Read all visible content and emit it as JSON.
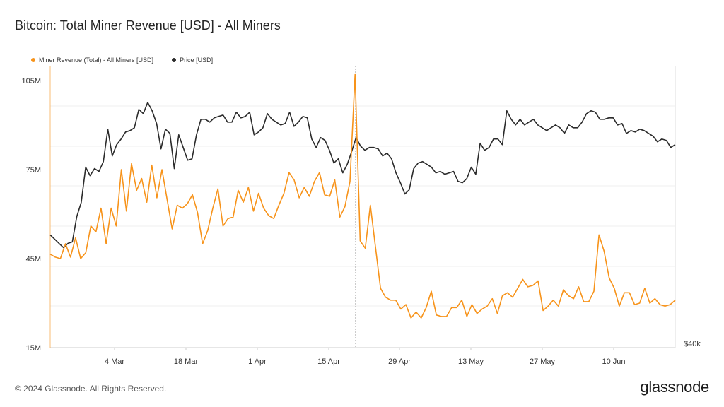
{
  "header": {
    "title": "Bitcoin: Total Miner Revenue [USD] - All Miners"
  },
  "footer": {
    "copyright": "© 2024 Glassnode. All Rights Reserved.",
    "logo": "glassnode"
  },
  "colors": {
    "revenue": "#f7931a",
    "price": "#2b2b2b",
    "grid": "#efefef",
    "axis": "#cccccc"
  },
  "chart_data": {
    "type": "line",
    "legend_position": "top-left",
    "grid": true,
    "x_ticks": [
      "4 Mar",
      "18 Mar",
      "1 Apr",
      "15 Apr",
      "29 Apr",
      "13 May",
      "27 May",
      "10 Jun"
    ],
    "y_left": {
      "ticks": [
        "15M",
        "45M",
        "75M",
        "105M"
      ],
      "tick_values": [
        15,
        45,
        75,
        105
      ],
      "range": [
        15,
        110
      ]
    },
    "y_right": {
      "ticks": [
        "$40k"
      ]
    },
    "marker_line_day": 49,
    "series": [
      {
        "name": "Miner Revenue (Total) - All Miners [USD]",
        "axis": "left",
        "unit": "M USD",
        "values": [
          46.5,
          45.5,
          45,
          50,
          45.5,
          52,
          45,
          47,
          56,
          54,
          62,
          50,
          62,
          56,
          75,
          61,
          77,
          68,
          72,
          64,
          76.5,
          65.5,
          75,
          65,
          55,
          63,
          62,
          63.5,
          66.5,
          60.5,
          50,
          54.5,
          62,
          68.5,
          56,
          58.5,
          59,
          68,
          64,
          69,
          61,
          67,
          62,
          59.5,
          58.5,
          63,
          67,
          74,
          71.5,
          65.5,
          69,
          66,
          71,
          74,
          66.5,
          66,
          71.5,
          59,
          62.5,
          71,
          107,
          51,
          48.5,
          63,
          49,
          35,
          32,
          31,
          31,
          28,
          29.5,
          25,
          27,
          25,
          28.5,
          34,
          26,
          25.5,
          25.5,
          28.5,
          28.5,
          31,
          25.5,
          29.5,
          26.5,
          28,
          29,
          31.5,
          26.5,
          32.5,
          33.5,
          32,
          35,
          38,
          35.5,
          36,
          37.5,
          27.5,
          29,
          31,
          29,
          34.5,
          32.5,
          31.5,
          35.5,
          30.5,
          30.5,
          34,
          53,
          47.5,
          38.5,
          35,
          29,
          33.5,
          33.5,
          29.5,
          30,
          35,
          30,
          31.5,
          29.5,
          29,
          29.5,
          31
        ]
      },
      {
        "name": "Price [USD]",
        "axis": "right",
        "unit": "relative level (0 = axis floor, 1 = chart top)",
        "values": [
          0.4,
          0.385,
          0.37,
          0.355,
          0.37,
          0.375,
          0.465,
          0.515,
          0.64,
          0.61,
          0.635,
          0.625,
          0.66,
          0.775,
          0.68,
          0.72,
          0.74,
          0.765,
          0.77,
          0.78,
          0.845,
          0.83,
          0.87,
          0.84,
          0.795,
          0.705,
          0.775,
          0.76,
          0.635,
          0.755,
          0.71,
          0.665,
          0.67,
          0.755,
          0.81,
          0.81,
          0.8,
          0.815,
          0.82,
          0.825,
          0.8,
          0.8,
          0.835,
          0.815,
          0.82,
          0.835,
          0.755,
          0.765,
          0.78,
          0.83,
          0.81,
          0.8,
          0.79,
          0.795,
          0.835,
          0.785,
          0.8,
          0.82,
          0.815,
          0.74,
          0.71,
          0.745,
          0.735,
          0.7,
          0.655,
          0.67,
          0.62,
          0.65,
          0.695,
          0.745,
          0.715,
          0.7,
          0.71,
          0.71,
          0.705,
          0.68,
          0.69,
          0.67,
          0.62,
          0.585,
          0.545,
          0.56,
          0.635,
          0.655,
          0.66,
          0.65,
          0.64,
          0.62,
          0.625,
          0.615,
          0.62,
          0.625,
          0.59,
          0.585,
          0.6,
          0.64,
          0.615,
          0.725,
          0.7,
          0.71,
          0.74,
          0.74,
          0.72,
          0.84,
          0.81,
          0.79,
          0.81,
          0.79,
          0.8,
          0.81,
          0.79,
          0.78,
          0.77,
          0.78,
          0.79,
          0.78,
          0.76,
          0.79,
          0.78,
          0.78,
          0.8,
          0.83,
          0.84,
          0.835,
          0.81,
          0.81,
          0.815,
          0.815,
          0.79,
          0.795,
          0.76,
          0.77,
          0.765,
          0.775,
          0.77,
          0.76,
          0.75,
          0.73,
          0.74,
          0.735,
          0.71,
          0.72
        ]
      }
    ]
  }
}
